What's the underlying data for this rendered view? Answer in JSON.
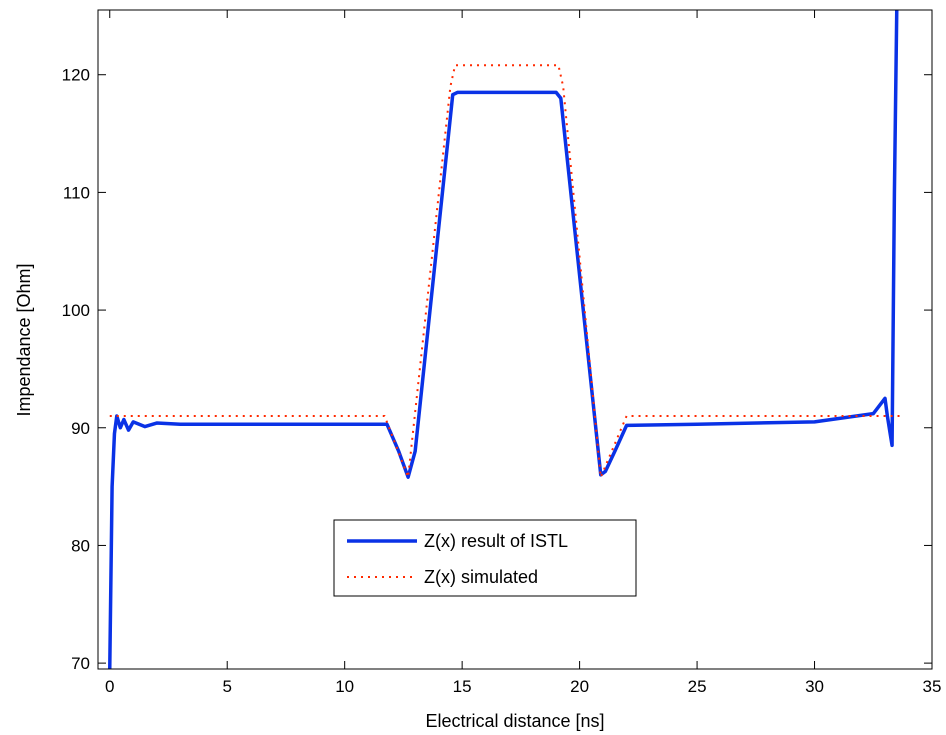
{
  "chart_data": {
    "type": "line",
    "title": "",
    "xlabel": "Electrical distance [ns]",
    "ylabel": "Impendance [Ohm]",
    "xlim": [
      -0.5,
      35
    ],
    "ylim": [
      69.5,
      125.5
    ],
    "xticks": [
      0,
      5,
      10,
      15,
      20,
      25,
      30,
      35
    ],
    "yticks": [
      70,
      80,
      90,
      100,
      110,
      120
    ],
    "grid": false,
    "legend_position": "center-bottom",
    "series": [
      {
        "name": "Z(x) result of ISTL",
        "color": "#0a32e6",
        "style": "solid",
        "x": [
          0.0,
          0.1,
          0.2,
          0.3,
          0.45,
          0.6,
          0.8,
          1.0,
          1.5,
          2.0,
          3.0,
          5.0,
          8.0,
          11.8,
          12.3,
          12.7,
          13.0,
          14.6,
          14.8,
          16.0,
          17.5,
          19.0,
          19.2,
          20.9,
          21.1,
          21.5,
          22.0,
          25.0,
          30.0,
          32.5,
          33.0,
          33.1,
          33.3,
          33.4,
          33.5
        ],
        "y": [
          69.5,
          85.0,
          89.5,
          91.0,
          90.0,
          90.7,
          89.8,
          90.5,
          90.1,
          90.4,
          90.3,
          90.3,
          90.3,
          90.3,
          88.0,
          85.8,
          88.0,
          118.3,
          118.5,
          118.5,
          118.5,
          118.5,
          118.0,
          86.0,
          86.3,
          88.0,
          90.2,
          90.3,
          90.5,
          91.2,
          92.5,
          91.0,
          88.5,
          110.0,
          125.5
        ]
      },
      {
        "name": "Z(x) simulated",
        "color": "#ff2a00",
        "style": "dotted",
        "x": [
          0.0,
          11.7,
          12.7,
          14.5,
          14.7,
          19.1,
          19.3,
          20.9,
          22.0,
          33.8
        ],
        "y": [
          91.0,
          91.0,
          85.8,
          119.0,
          120.8,
          120.8,
          119.0,
          85.8,
          91.0,
          91.0
        ]
      }
    ]
  }
}
